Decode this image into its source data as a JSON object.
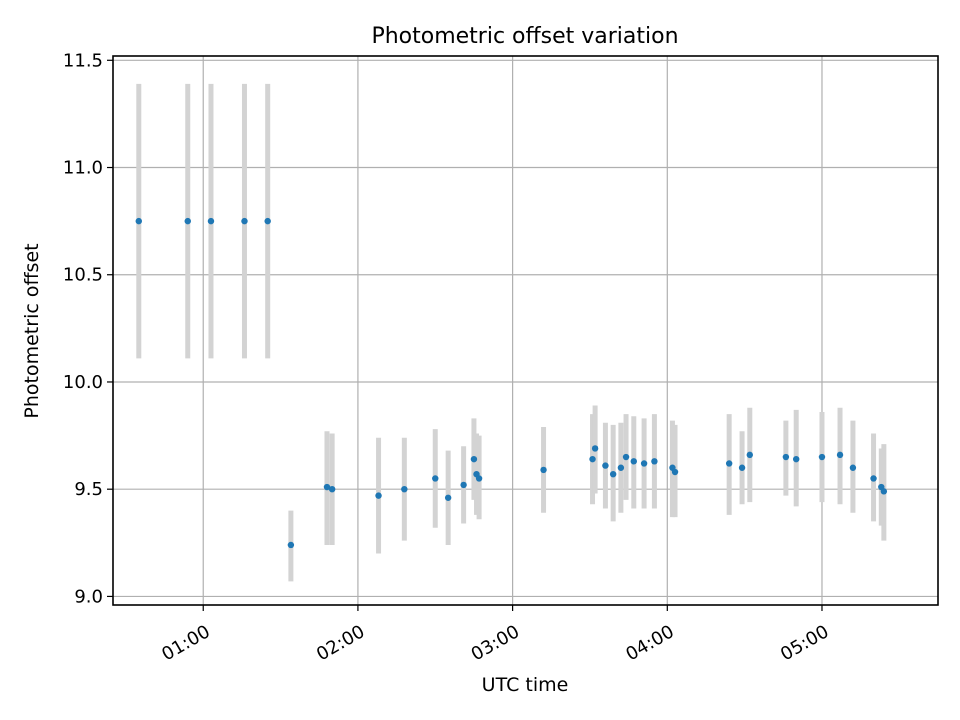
{
  "chart_data": {
    "type": "scatter",
    "title": "Photometric offset variation",
    "xlabel": "UTC time",
    "ylabel": "Photometric offset",
    "x_axis_type": "time",
    "x_ticks": [
      "01:00",
      "02:00",
      "03:00",
      "04:00",
      "05:00"
    ],
    "x_tick_values": [
      "01:00",
      "02:00",
      "03:00",
      "04:00",
      "05:00"
    ],
    "xlim": [
      "00:25",
      "05:45"
    ],
    "y_ticks": [
      "9.0",
      "9.5",
      "10.0",
      "10.5",
      "11.0",
      "11.5"
    ],
    "y_tick_values": [
      9.0,
      9.5,
      10.0,
      10.5,
      11.0,
      11.5
    ],
    "ylim": [
      8.96,
      11.52
    ],
    "grid": true,
    "colors": {
      "points": "#1f77b4",
      "errorbars": "#d3d3d3"
    },
    "series": [
      {
        "points": [
          {
            "t": "00:35",
            "y": 10.75,
            "lo": 10.11,
            "hi": 11.39
          },
          {
            "t": "00:54",
            "y": 10.75,
            "lo": 10.11,
            "hi": 11.39
          },
          {
            "t": "01:03",
            "y": 10.75,
            "lo": 10.11,
            "hi": 11.39
          },
          {
            "t": "01:16",
            "y": 10.75,
            "lo": 10.11,
            "hi": 11.39
          },
          {
            "t": "01:25",
            "y": 10.75,
            "lo": 10.11,
            "hi": 11.39
          },
          {
            "t": "01:34",
            "y": 9.24,
            "lo": 9.07,
            "hi": 9.4
          },
          {
            "t": "01:48",
            "y": 9.51,
            "lo": 9.24,
            "hi": 9.77
          },
          {
            "t": "01:50",
            "y": 9.5,
            "lo": 9.24,
            "hi": 9.76
          },
          {
            "t": "02:08",
            "y": 9.47,
            "lo": 9.2,
            "hi": 9.74
          },
          {
            "t": "02:18",
            "y": 9.5,
            "lo": 9.26,
            "hi": 9.74
          },
          {
            "t": "02:30",
            "y": 9.55,
            "lo": 9.32,
            "hi": 9.78
          },
          {
            "t": "02:35",
            "y": 9.46,
            "lo": 9.24,
            "hi": 9.68
          },
          {
            "t": "02:41",
            "y": 9.52,
            "lo": 9.34,
            "hi": 9.7
          },
          {
            "t": "02:45",
            "y": 9.64,
            "lo": 9.45,
            "hi": 9.83
          },
          {
            "t": "02:46",
            "y": 9.57,
            "lo": 9.38,
            "hi": 9.76
          },
          {
            "t": "02:47",
            "y": 9.55,
            "lo": 9.36,
            "hi": 9.75
          },
          {
            "t": "03:12",
            "y": 9.59,
            "lo": 9.39,
            "hi": 9.79
          },
          {
            "t": "03:31",
            "y": 9.64,
            "lo": 9.43,
            "hi": 9.85
          },
          {
            "t": "03:32",
            "y": 9.69,
            "lo": 9.48,
            "hi": 9.89
          },
          {
            "t": "03:36",
            "y": 9.61,
            "lo": 9.41,
            "hi": 9.81
          },
          {
            "t": "03:39",
            "y": 9.57,
            "lo": 9.35,
            "hi": 9.8
          },
          {
            "t": "03:42",
            "y": 9.6,
            "lo": 9.39,
            "hi": 9.81
          },
          {
            "t": "03:44",
            "y": 9.65,
            "lo": 9.45,
            "hi": 9.85
          },
          {
            "t": "03:47",
            "y": 9.63,
            "lo": 9.41,
            "hi": 9.84
          },
          {
            "t": "03:51",
            "y": 9.62,
            "lo": 9.41,
            "hi": 9.83
          },
          {
            "t": "03:55",
            "y": 9.63,
            "lo": 9.41,
            "hi": 9.85
          },
          {
            "t": "04:02",
            "y": 9.6,
            "lo": 9.37,
            "hi": 9.82
          },
          {
            "t": "04:03",
            "y": 9.58,
            "lo": 9.37,
            "hi": 9.8
          },
          {
            "t": "04:24",
            "y": 9.62,
            "lo": 9.38,
            "hi": 9.85
          },
          {
            "t": "04:29",
            "y": 9.6,
            "lo": 9.43,
            "hi": 9.77
          },
          {
            "t": "04:32",
            "y": 9.66,
            "lo": 9.44,
            "hi": 9.88
          },
          {
            "t": "04:46",
            "y": 9.65,
            "lo": 9.47,
            "hi": 9.82
          },
          {
            "t": "04:50",
            "y": 9.64,
            "lo": 9.42,
            "hi": 9.87
          },
          {
            "t": "05:00",
            "y": 9.65,
            "lo": 9.44,
            "hi": 9.86
          },
          {
            "t": "05:07",
            "y": 9.66,
            "lo": 9.43,
            "hi": 9.88
          },
          {
            "t": "05:12",
            "y": 9.6,
            "lo": 9.39,
            "hi": 9.82
          },
          {
            "t": "05:20",
            "y": 9.55,
            "lo": 9.35,
            "hi": 9.76
          },
          {
            "t": "05:23",
            "y": 9.51,
            "lo": 9.33,
            "hi": 9.69
          },
          {
            "t": "05:24",
            "y": 9.49,
            "lo": 9.26,
            "hi": 9.71
          }
        ]
      }
    ]
  }
}
